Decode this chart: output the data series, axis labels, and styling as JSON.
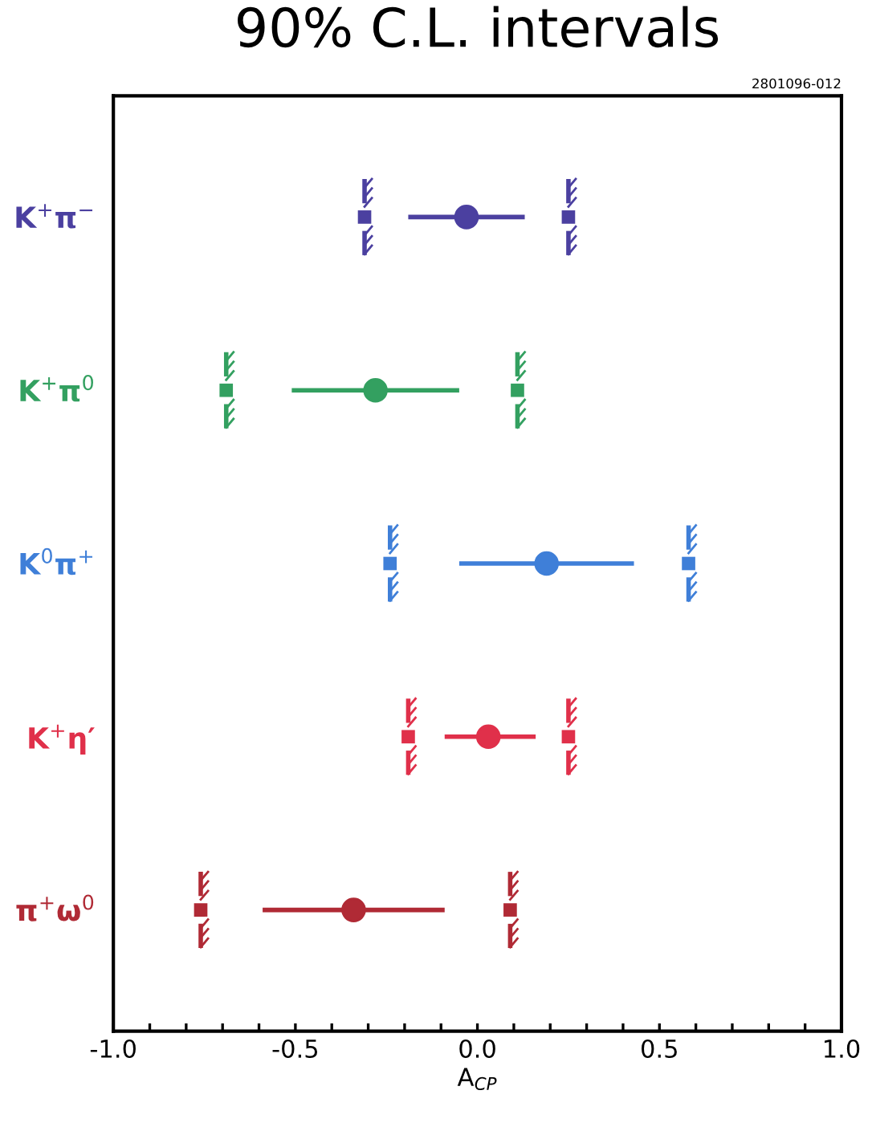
{
  "chart_data": {
    "type": "scatter",
    "orientation": "horizontal",
    "title": "90% C.L. intervals",
    "xlabel": "A$_{CP}$",
    "annotations": [
      "2801096-012"
    ],
    "categories": [
      "K$^{+}$π$^{−}$",
      "K$^{+}$π$^{0}$",
      "K$^{0}$π$^{+}$",
      "K$^{+}$η′",
      "π$^{+}$ω$^{0}$"
    ],
    "series": [
      {
        "type": "scatter",
        "marker": "circle",
        "colors": [
          "#4b40a0",
          "#33a060",
          "#3f7fd8",
          "#e0304a",
          "#b02a35"
        ],
        "values": [
          -0.03,
          -0.28,
          0.19,
          0.03,
          -0.34
        ],
        "errors": [
          [
            -0.19,
            0.13
          ],
          [
            -0.51,
            -0.05
          ],
          [
            -0.05,
            0.43
          ],
          [
            -0.09,
            0.16
          ],
          [
            -0.59,
            -0.09
          ]
        ]
      },
      {
        "type": "scatter",
        "marker": "square",
        "colors": [
          "#4b40a0",
          "#33a060",
          "#3f7fd8",
          "#e0304a",
          "#b02a35"
        ],
        "values": [
          -0.31,
          -0.69,
          -0.24,
          -0.19,
          -0.76
        ]
      },
      {
        "type": "scatter",
        "marker": "square",
        "colors": [
          "#4b40a0",
          "#33a060",
          "#3f7fd8",
          "#e0304a",
          "#b02a35"
        ],
        "values": [
          0.25,
          0.11,
          0.58,
          0.25,
          0.09
        ]
      }
    ],
    "xlim": [
      -1.0,
      1.0
    ],
    "xticks": [
      {
        "value": -1.0,
        "label": "-1.0"
      },
      {
        "value": -0.9,
        "label": null
      },
      {
        "value": -0.8,
        "label": null
      },
      {
        "value": -0.7,
        "label": null
      },
      {
        "value": -0.6,
        "label": null
      },
      {
        "value": -0.5,
        "label": "-0.5"
      },
      {
        "value": -0.4,
        "label": null
      },
      {
        "value": -0.3,
        "label": null
      },
      {
        "value": -0.2,
        "label": null
      },
      {
        "value": -0.1,
        "label": null
      },
      {
        "value": 0.0,
        "label": "0.0"
      },
      {
        "value": 0.1,
        "label": null
      },
      {
        "value": 0.2,
        "label": null
      },
      {
        "value": 0.3,
        "label": null
      },
      {
        "value": 0.4,
        "label": null
      },
      {
        "value": 0.5,
        "label": "0.5"
      },
      {
        "value": 0.6,
        "label": null
      },
      {
        "value": 0.7,
        "label": null
      },
      {
        "value": 0.8,
        "label": null
      },
      {
        "value": 0.9,
        "label": null
      },
      {
        "value": 1.0,
        "label": "1.0"
      }
    ],
    "grid": false,
    "legend": false
  }
}
